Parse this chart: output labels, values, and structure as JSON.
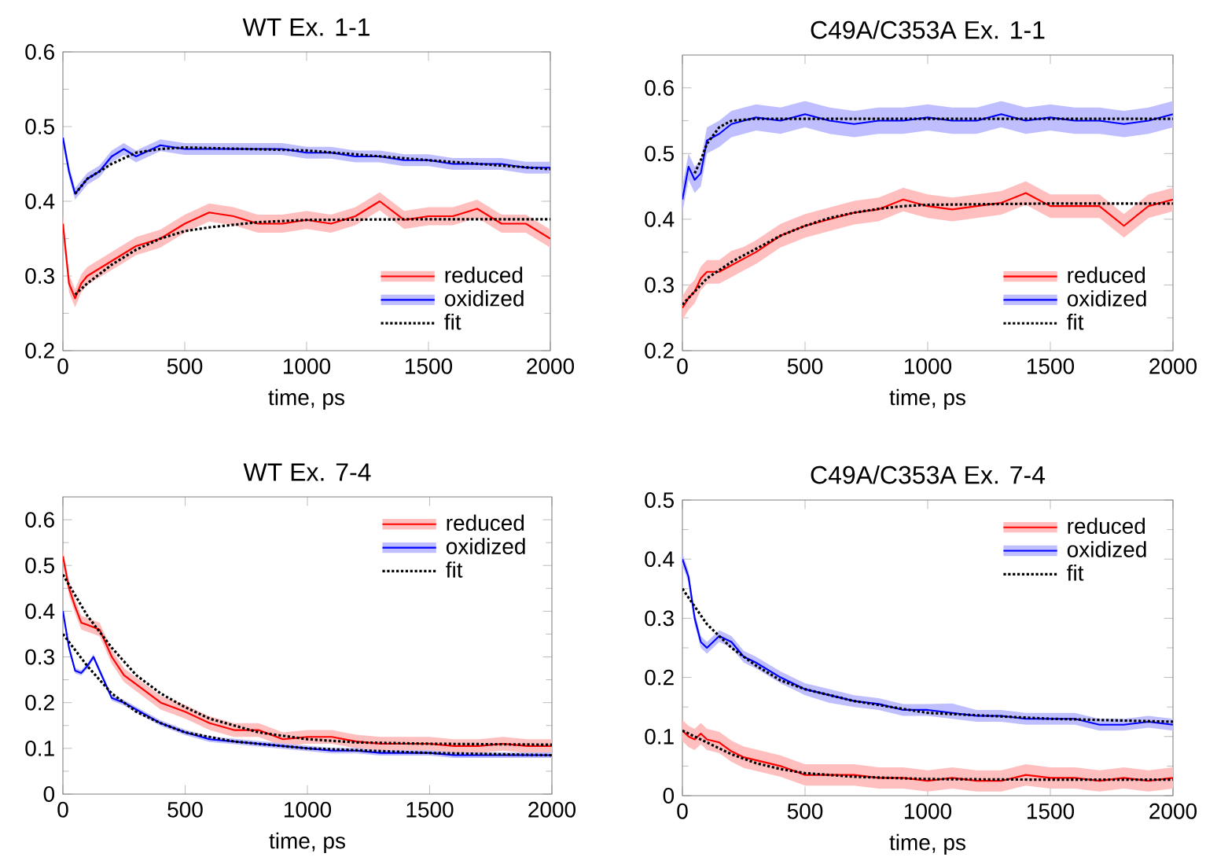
{
  "chart_data": [
    {
      "type": "line",
      "title": "WT Ex. 1-1",
      "xlabel": "time, ps",
      "xlim": [
        0,
        2000
      ],
      "xticks": [
        0,
        500,
        1000,
        1500,
        2000
      ],
      "ylim": [
        0.2,
        0.6
      ],
      "yticks": [
        0.2,
        0.3,
        0.4,
        0.5,
        0.6
      ],
      "grid": false,
      "legend": "bottom right",
      "series": [
        {
          "name": "reduced",
          "color": "#ff0000",
          "line_style": "solid",
          "x": [
            0,
            25,
            50,
            75,
            100,
            150,
            200,
            250,
            300,
            400,
            500,
            600,
            700,
            800,
            900,
            1000,
            1100,
            1200,
            1300,
            1400,
            1500,
            1600,
            1700,
            1800,
            1900,
            2000
          ],
          "values": [
            0.37,
            0.29,
            0.27,
            0.29,
            0.3,
            0.31,
            0.32,
            0.33,
            0.34,
            0.35,
            0.37,
            0.385,
            0.38,
            0.37,
            0.37,
            0.375,
            0.37,
            0.38,
            0.4,
            0.375,
            0.38,
            0.38,
            0.39,
            0.37,
            0.37,
            0.35
          ],
          "lower": [
            0.358,
            0.278,
            0.258,
            0.278,
            0.288,
            0.298,
            0.308,
            0.318,
            0.328,
            0.338,
            0.358,
            0.373,
            0.368,
            0.358,
            0.358,
            0.363,
            0.358,
            0.368,
            0.388,
            0.363,
            0.368,
            0.368,
            0.378,
            0.358,
            0.358,
            0.338
          ],
          "upper": [
            0.382,
            0.302,
            0.282,
            0.302,
            0.312,
            0.322,
            0.332,
            0.342,
            0.352,
            0.362,
            0.382,
            0.397,
            0.392,
            0.382,
            0.382,
            0.387,
            0.382,
            0.392,
            0.412,
            0.387,
            0.392,
            0.392,
            0.402,
            0.382,
            0.382,
            0.362
          ]
        },
        {
          "name": "oxidized",
          "color": "#0000ff",
          "line_style": "solid",
          "x": [
            0,
            25,
            50,
            75,
            100,
            150,
            200,
            250,
            300,
            400,
            500,
            600,
            700,
            800,
            900,
            1000,
            1100,
            1200,
            1300,
            1400,
            1500,
            1600,
            1700,
            1800,
            1900,
            2000
          ],
          "values": [
            0.485,
            0.44,
            0.41,
            0.42,
            0.43,
            0.44,
            0.46,
            0.47,
            0.46,
            0.475,
            0.47,
            0.47,
            0.47,
            0.47,
            0.47,
            0.465,
            0.465,
            0.46,
            0.46,
            0.455,
            0.455,
            0.45,
            0.45,
            0.45,
            0.445,
            0.445
          ],
          "lower": [
            0.477,
            0.432,
            0.402,
            0.412,
            0.422,
            0.432,
            0.452,
            0.462,
            0.452,
            0.467,
            0.462,
            0.462,
            0.462,
            0.462,
            0.462,
            0.457,
            0.457,
            0.452,
            0.452,
            0.447,
            0.447,
            0.442,
            0.442,
            0.442,
            0.437,
            0.437
          ],
          "upper": [
            0.493,
            0.448,
            0.418,
            0.428,
            0.438,
            0.448,
            0.468,
            0.478,
            0.468,
            0.483,
            0.478,
            0.478,
            0.478,
            0.478,
            0.478,
            0.473,
            0.473,
            0.468,
            0.468,
            0.463,
            0.463,
            0.458,
            0.458,
            0.458,
            0.453,
            0.453
          ]
        },
        {
          "name": "fit",
          "color": "#000000",
          "line_style": "dotted",
          "x": [
            50,
            100,
            200,
            300,
            400,
            500,
            600,
            800,
            1000,
            1500,
            2000
          ],
          "values": [
            0.275,
            0.29,
            0.315,
            0.335,
            0.35,
            0.36,
            0.365,
            0.372,
            0.375,
            0.376,
            0.376
          ]
        },
        {
          "color": "#000000",
          "line_style": "dotted",
          "x": [
            50,
            100,
            200,
            300,
            400,
            500,
            1000,
            1500,
            2000
          ],
          "values": [
            0.41,
            0.43,
            0.45,
            0.465,
            0.47,
            0.472,
            0.468,
            0.455,
            0.443
          ]
        }
      ]
    },
    {
      "type": "line",
      "title": "C49A/C353A Ex. 1-1",
      "xlabel": "time, ps",
      "xlim": [
        0,
        2000
      ],
      "xticks": [
        0,
        500,
        1000,
        1500,
        2000
      ],
      "ylim": [
        0.2,
        0.65
      ],
      "yticks": [
        0.2,
        0.3,
        0.4,
        0.5,
        0.6
      ],
      "grid": false,
      "legend": "bottom right",
      "series": [
        {
          "name": "reduced",
          "color": "#ff0000",
          "line_style": "solid",
          "x": [
            0,
            25,
            50,
            75,
            100,
            150,
            200,
            250,
            300,
            400,
            500,
            600,
            700,
            800,
            900,
            1000,
            1100,
            1200,
            1300,
            1400,
            1500,
            1600,
            1700,
            1800,
            1900,
            2000
          ],
          "values": [
            0.265,
            0.28,
            0.29,
            0.31,
            0.32,
            0.32,
            0.33,
            0.34,
            0.35,
            0.375,
            0.39,
            0.4,
            0.41,
            0.415,
            0.43,
            0.42,
            0.415,
            0.42,
            0.425,
            0.44,
            0.42,
            0.42,
            0.42,
            0.39,
            0.42,
            0.43
          ],
          "lower": [
            0.247,
            0.262,
            0.272,
            0.292,
            0.302,
            0.302,
            0.312,
            0.322,
            0.332,
            0.357,
            0.372,
            0.382,
            0.392,
            0.397,
            0.412,
            0.402,
            0.397,
            0.402,
            0.407,
            0.422,
            0.402,
            0.402,
            0.402,
            0.372,
            0.402,
            0.412
          ],
          "upper": [
            0.283,
            0.298,
            0.308,
            0.328,
            0.338,
            0.338,
            0.352,
            0.358,
            0.368,
            0.393,
            0.408,
            0.418,
            0.428,
            0.433,
            0.448,
            0.438,
            0.433,
            0.438,
            0.443,
            0.458,
            0.438,
            0.438,
            0.438,
            0.408,
            0.438,
            0.448
          ]
        },
        {
          "name": "oxidized",
          "color": "#0000ff",
          "line_style": "solid",
          "x": [
            0,
            25,
            50,
            75,
            100,
            150,
            200,
            250,
            300,
            400,
            500,
            600,
            700,
            800,
            900,
            1000,
            1100,
            1200,
            1300,
            1400,
            1500,
            1600,
            1700,
            1800,
            1900,
            2000
          ],
          "values": [
            0.43,
            0.48,
            0.46,
            0.47,
            0.52,
            0.53,
            0.545,
            0.55,
            0.555,
            0.55,
            0.56,
            0.55,
            0.545,
            0.55,
            0.55,
            0.555,
            0.55,
            0.55,
            0.56,
            0.55,
            0.555,
            0.55,
            0.55,
            0.545,
            0.55,
            0.56
          ],
          "lower": [
            0.41,
            0.46,
            0.44,
            0.45,
            0.5,
            0.51,
            0.525,
            0.53,
            0.535,
            0.53,
            0.54,
            0.53,
            0.525,
            0.53,
            0.53,
            0.535,
            0.53,
            0.53,
            0.54,
            0.53,
            0.535,
            0.53,
            0.53,
            0.525,
            0.53,
            0.54
          ],
          "upper": [
            0.45,
            0.5,
            0.48,
            0.49,
            0.54,
            0.55,
            0.565,
            0.57,
            0.575,
            0.57,
            0.58,
            0.57,
            0.565,
            0.57,
            0.57,
            0.575,
            0.57,
            0.57,
            0.58,
            0.57,
            0.575,
            0.57,
            0.57,
            0.565,
            0.57,
            0.58
          ]
        },
        {
          "name": "fit",
          "color": "#000000",
          "line_style": "dotted",
          "x": [
            0,
            100,
            200,
            300,
            400,
            500,
            600,
            700,
            800,
            900,
            1000,
            1500,
            2000
          ],
          "values": [
            0.27,
            0.31,
            0.335,
            0.355,
            0.375,
            0.39,
            0.402,
            0.41,
            0.416,
            0.42,
            0.422,
            0.424,
            0.424
          ]
        },
        {
          "color": "#000000",
          "line_style": "dotted",
          "x": [
            50,
            75,
            100,
            150,
            200,
            300,
            500,
            1000,
            2000
          ],
          "values": [
            0.47,
            0.49,
            0.515,
            0.54,
            0.55,
            0.553,
            0.553,
            0.553,
            0.553
          ]
        }
      ]
    },
    {
      "type": "line",
      "title": "WT Ex. 7-4",
      "xlabel": "time, ps",
      "xlim": [
        0,
        2000
      ],
      "xticks": [
        0,
        500,
        1000,
        1500,
        2000
      ],
      "ylim": [
        0,
        0.65
      ],
      "yticks": [
        0,
        0.1,
        0.2,
        0.3,
        0.4,
        0.5,
        0.6
      ],
      "grid": false,
      "legend": "top right",
      "series": [
        {
          "name": "reduced",
          "color": "#ff0000",
          "line_style": "solid",
          "x": [
            0,
            25,
            50,
            75,
            100,
            150,
            200,
            250,
            300,
            400,
            500,
            600,
            700,
            800,
            900,
            1000,
            1100,
            1200,
            1300,
            1400,
            1500,
            1600,
            1700,
            1800,
            1900,
            2000
          ],
          "values": [
            0.52,
            0.45,
            0.41,
            0.375,
            0.37,
            0.36,
            0.3,
            0.26,
            0.24,
            0.2,
            0.18,
            0.155,
            0.14,
            0.14,
            0.12,
            0.125,
            0.125,
            0.115,
            0.11,
            0.11,
            0.11,
            0.105,
            0.105,
            0.11,
            0.105,
            0.105
          ],
          "lower": [
            0.505,
            0.435,
            0.395,
            0.36,
            0.355,
            0.345,
            0.285,
            0.245,
            0.225,
            0.185,
            0.165,
            0.14,
            0.125,
            0.125,
            0.105,
            0.11,
            0.11,
            0.1,
            0.095,
            0.095,
            0.095,
            0.09,
            0.09,
            0.095,
            0.09,
            0.09
          ],
          "upper": [
            0.535,
            0.465,
            0.425,
            0.39,
            0.385,
            0.375,
            0.315,
            0.275,
            0.255,
            0.215,
            0.195,
            0.17,
            0.155,
            0.155,
            0.135,
            0.14,
            0.14,
            0.13,
            0.125,
            0.125,
            0.125,
            0.12,
            0.12,
            0.125,
            0.12,
            0.12
          ]
        },
        {
          "name": "oxidized",
          "color": "#0000ff",
          "line_style": "solid",
          "x": [
            0,
            25,
            50,
            75,
            100,
            125,
            150,
            200,
            250,
            300,
            400,
            500,
            600,
            700,
            800,
            900,
            1000,
            1100,
            1200,
            1300,
            1400,
            1500,
            1600,
            1700,
            1800,
            1900,
            2000
          ],
          "values": [
            0.4,
            0.32,
            0.27,
            0.265,
            0.28,
            0.3,
            0.27,
            0.21,
            0.2,
            0.185,
            0.155,
            0.135,
            0.12,
            0.115,
            0.11,
            0.105,
            0.1,
            0.095,
            0.095,
            0.09,
            0.09,
            0.09,
            0.085,
            0.085,
            0.085,
            0.085,
            0.085
          ],
          "lower": [
            0.394,
            0.314,
            0.264,
            0.259,
            0.274,
            0.294,
            0.264,
            0.204,
            0.194,
            0.179,
            0.149,
            0.129,
            0.114,
            0.109,
            0.104,
            0.099,
            0.094,
            0.089,
            0.089,
            0.084,
            0.084,
            0.084,
            0.079,
            0.079,
            0.079,
            0.079,
            0.079
          ],
          "upper": [
            0.406,
            0.326,
            0.276,
            0.271,
            0.286,
            0.306,
            0.276,
            0.216,
            0.206,
            0.191,
            0.161,
            0.141,
            0.126,
            0.121,
            0.116,
            0.111,
            0.106,
            0.101,
            0.101,
            0.096,
            0.096,
            0.096,
            0.091,
            0.091,
            0.091,
            0.091,
            0.091
          ]
        },
        {
          "name": "fit",
          "color": "#000000",
          "line_style": "dotted",
          "x": [
            0,
            100,
            200,
            300,
            400,
            500,
            600,
            700,
            800,
            1000,
            1200,
            1500,
            2000
          ],
          "values": [
            0.48,
            0.39,
            0.32,
            0.26,
            0.22,
            0.19,
            0.165,
            0.15,
            0.135,
            0.12,
            0.113,
            0.11,
            0.108
          ]
        },
        {
          "color": "#000000",
          "line_style": "dotted",
          "x": [
            0,
            100,
            200,
            300,
            400,
            500,
            700,
            1000,
            1500,
            2000
          ],
          "values": [
            0.35,
            0.28,
            0.22,
            0.18,
            0.155,
            0.135,
            0.115,
            0.1,
            0.09,
            0.085
          ]
        }
      ]
    },
    {
      "type": "line",
      "title": "C49A/C353A Ex. 7-4",
      "xlabel": "time, ps",
      "xlim": [
        0,
        2000
      ],
      "xticks": [
        0,
        500,
        1000,
        1500,
        2000
      ],
      "ylim": [
        0,
        0.5
      ],
      "yticks": [
        0,
        0.1,
        0.2,
        0.3,
        0.4,
        0.5
      ],
      "grid": false,
      "legend": "top right",
      "series": [
        {
          "name": "reduced",
          "color": "#ff0000",
          "line_style": "solid",
          "x": [
            0,
            25,
            50,
            75,
            100,
            150,
            200,
            250,
            300,
            400,
            500,
            600,
            700,
            800,
            900,
            1000,
            1100,
            1200,
            1300,
            1400,
            1500,
            1600,
            1700,
            1800,
            1900,
            2000
          ],
          "values": [
            0.11,
            0.1,
            0.095,
            0.105,
            0.095,
            0.09,
            0.075,
            0.065,
            0.06,
            0.05,
            0.035,
            0.035,
            0.035,
            0.03,
            0.03,
            0.025,
            0.03,
            0.025,
            0.025,
            0.035,
            0.03,
            0.03,
            0.025,
            0.03,
            0.025,
            0.03
          ],
          "lower": [
            0.092,
            0.082,
            0.077,
            0.087,
            0.077,
            0.072,
            0.057,
            0.047,
            0.042,
            0.032,
            0.017,
            0.017,
            0.017,
            0.012,
            0.012,
            0.007,
            0.012,
            0.007,
            0.007,
            0.017,
            0.012,
            0.012,
            0.007,
            0.012,
            0.007,
            0.012
          ],
          "upper": [
            0.128,
            0.118,
            0.113,
            0.123,
            0.113,
            0.108,
            0.093,
            0.083,
            0.078,
            0.068,
            0.053,
            0.053,
            0.053,
            0.048,
            0.048,
            0.043,
            0.048,
            0.043,
            0.043,
            0.053,
            0.048,
            0.048,
            0.043,
            0.048,
            0.043,
            0.048
          ]
        },
        {
          "name": "oxidized",
          "color": "#0000ff",
          "line_style": "solid",
          "x": [
            0,
            25,
            50,
            75,
            100,
            150,
            200,
            250,
            300,
            400,
            500,
            600,
            700,
            800,
            900,
            1000,
            1100,
            1200,
            1300,
            1400,
            1500,
            1600,
            1700,
            1800,
            1900,
            2000
          ],
          "values": [
            0.4,
            0.37,
            0.3,
            0.26,
            0.25,
            0.27,
            0.26,
            0.235,
            0.225,
            0.2,
            0.18,
            0.17,
            0.16,
            0.155,
            0.145,
            0.145,
            0.14,
            0.135,
            0.135,
            0.13,
            0.13,
            0.13,
            0.12,
            0.12,
            0.125,
            0.12
          ],
          "lower": [
            0.39,
            0.36,
            0.29,
            0.25,
            0.24,
            0.26,
            0.25,
            0.225,
            0.215,
            0.19,
            0.17,
            0.157,
            0.15,
            0.145,
            0.135,
            0.135,
            0.13,
            0.125,
            0.125,
            0.12,
            0.12,
            0.12,
            0.11,
            0.11,
            0.115,
            0.11
          ],
          "upper": [
            0.41,
            0.38,
            0.31,
            0.27,
            0.26,
            0.28,
            0.27,
            0.245,
            0.235,
            0.21,
            0.19,
            0.18,
            0.17,
            0.165,
            0.155,
            0.155,
            0.156,
            0.145,
            0.145,
            0.14,
            0.14,
            0.14,
            0.13,
            0.13,
            0.135,
            0.13
          ]
        },
        {
          "name": "fit",
          "color": "#000000",
          "line_style": "dotted",
          "x": [
            0,
            100,
            200,
            300,
            400,
            500,
            700,
            1000,
            1500,
            2000
          ],
          "values": [
            0.11,
            0.09,
            0.07,
            0.055,
            0.045,
            0.038,
            0.032,
            0.028,
            0.027,
            0.027
          ]
        },
        {
          "color": "#000000",
          "line_style": "dotted",
          "x": [
            0,
            100,
            200,
            300,
            400,
            500,
            700,
            1000,
            1500,
            2000
          ],
          "values": [
            0.35,
            0.29,
            0.25,
            0.22,
            0.195,
            0.18,
            0.16,
            0.14,
            0.13,
            0.125
          ]
        }
      ]
    }
  ]
}
